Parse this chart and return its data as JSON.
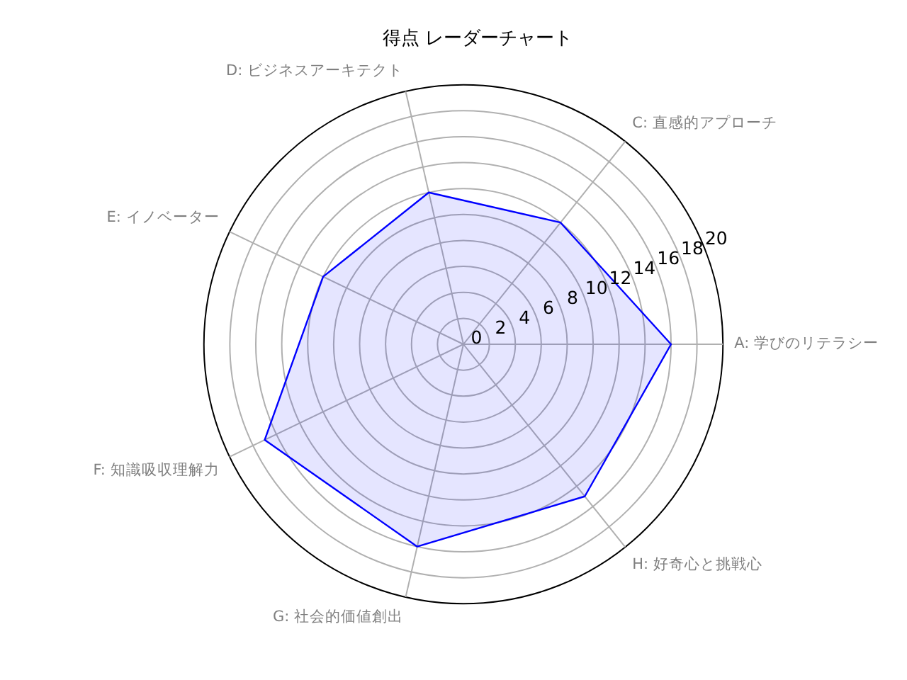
{
  "chart_data": {
    "type": "radar",
    "title": "得点 レーダーチャート",
    "categories": [
      "D: ビジネスアーキテクト",
      "C: 直感的アプローチ",
      "A: 学びのリテラシー",
      "H: 好奇心と挑戦心",
      "G: 社会的価値創出",
      "F: 知識吸収理解力",
      "E: イノベーター"
    ],
    "series": [
      {
        "color": "#0000ff",
        "values": [
          12,
          12,
          16,
          15,
          16,
          17,
          12
        ]
      }
    ],
    "ylim": [
      0,
      20
    ],
    "yticks": [
      0,
      2,
      4,
      6,
      8,
      10,
      12,
      14,
      16,
      18,
      20
    ],
    "grid": true,
    "legend": false,
    "marker": "none",
    "line_style": "solid"
  }
}
